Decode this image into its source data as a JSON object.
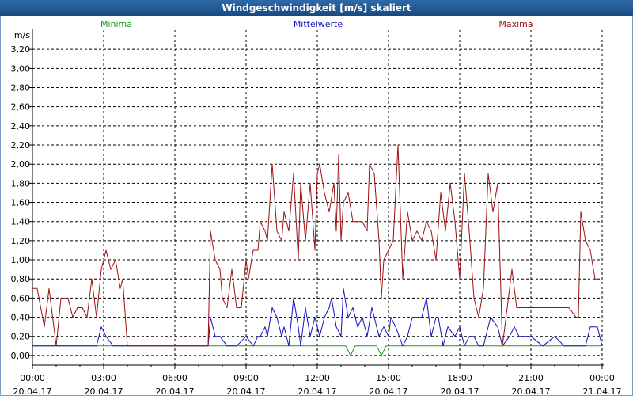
{
  "title": "Windgeschwindigkeit [m/s] skaliert",
  "colors": {
    "min": "#1a9b1a",
    "mean": "#1010c0",
    "max": "#9b1010",
    "axis": "#000000",
    "grid": "#000000"
  },
  "chart_data": {
    "type": "line",
    "ylabel": "m/s",
    "ylim": [
      -0.1,
      3.4
    ],
    "y_ticks": [
      "0,00",
      "0,20",
      "0,40",
      "0,60",
      "0,80",
      "1,00",
      "1,20",
      "1,40",
      "1,60",
      "1,80",
      "2,00",
      "2,20",
      "2,40",
      "2,60",
      "2,80",
      "3,00",
      "3,20"
    ],
    "x_ticks": [
      {
        "time": "00:00",
        "date": "20.04.17"
      },
      {
        "time": "03:00",
        "date": "20.04.17"
      },
      {
        "time": "06:00",
        "date": "20.04.17"
      },
      {
        "time": "09:00",
        "date": "20.04.17"
      },
      {
        "time": "12:00",
        "date": "20.04.17"
      },
      {
        "time": "15:00",
        "date": "20.04.17"
      },
      {
        "time": "18:00",
        "date": "20.04.17"
      },
      {
        "time": "21:00",
        "date": "20.04.17"
      },
      {
        "time": "00:00",
        "date": "21.04.17"
      }
    ],
    "grid": true,
    "series": [
      {
        "name": "Minima",
        "color_key": "min",
        "x": [
          0,
          13.2,
          13.4,
          13.6,
          14.5,
          14.7,
          14.9,
          24
        ],
        "y": [
          0.1,
          0.1,
          0.0,
          0.1,
          0.1,
          0.0,
          0.1,
          0.1
        ]
      },
      {
        "name": "Mittelwerte",
        "color_key": "mean",
        "x": [
          0,
          2.7,
          2.9,
          3.1,
          3.4,
          4.0,
          7.4,
          7.5,
          7.7,
          7.9,
          8.2,
          8.6,
          9.0,
          9.3,
          9.5,
          9.6,
          9.8,
          9.9,
          10.1,
          10.3,
          10.5,
          10.6,
          10.8,
          11.0,
          11.2,
          11.3,
          11.5,
          11.7,
          11.9,
          12.0,
          12.1,
          12.3,
          12.5,
          12.6,
          12.8,
          13.0,
          13.1,
          13.3,
          13.5,
          13.7,
          13.9,
          14.1,
          14.3,
          14.6,
          14.8,
          15.0,
          15.1,
          15.3,
          15.6,
          15.8,
          16.0,
          16.2,
          16.4,
          16.6,
          16.8,
          17.0,
          17.1,
          17.3,
          17.5,
          17.8,
          18.0,
          18.2,
          18.4,
          18.6,
          18.8,
          19.0,
          19.3,
          19.6,
          19.8,
          20.1,
          20.3,
          20.5,
          20.8,
          21.0,
          21.5,
          22.0,
          22.4,
          22.7,
          22.9,
          23.2,
          23.3,
          23.5,
          23.8,
          24
        ],
        "y": [
          0.1,
          0.1,
          0.3,
          0.2,
          0.1,
          0.1,
          0.1,
          0.4,
          0.2,
          0.2,
          0.1,
          0.1,
          0.2,
          0.1,
          0.2,
          0.2,
          0.3,
          0.2,
          0.5,
          0.4,
          0.2,
          0.3,
          0.1,
          0.6,
          0.3,
          0.1,
          0.5,
          0.2,
          0.4,
          0.3,
          0.2,
          0.4,
          0.5,
          0.6,
          0.3,
          0.2,
          0.7,
          0.4,
          0.5,
          0.3,
          0.4,
          0.2,
          0.5,
          0.2,
          0.3,
          0.2,
          0.4,
          0.3,
          0.1,
          0.2,
          0.4,
          0.4,
          0.4,
          0.6,
          0.2,
          0.4,
          0.4,
          0.1,
          0.3,
          0.2,
          0.3,
          0.1,
          0.2,
          0.2,
          0.1,
          0.1,
          0.4,
          0.3,
          0.1,
          0.2,
          0.3,
          0.2,
          0.2,
          0.2,
          0.1,
          0.2,
          0.1,
          0.1,
          0.1,
          0.1,
          0.1,
          0.3,
          0.3,
          0.1
        ]
      },
      {
        "name": "Maxima",
        "color_key": "max",
        "x": [
          0,
          0.2,
          0.5,
          0.7,
          1.0,
          1.2,
          1.5,
          1.7,
          1.9,
          2.1,
          2.3,
          2.5,
          2.7,
          2.9,
          3.1,
          3.3,
          3.5,
          3.7,
          3.8,
          4.0,
          7.4,
          7.5,
          7.7,
          7.9,
          8.0,
          8.2,
          8.4,
          8.6,
          8.8,
          9.0,
          9.1,
          9.3,
          9.5,
          9.6,
          9.8,
          9.9,
          10.1,
          10.3,
          10.5,
          10.6,
          10.8,
          11.0,
          11.2,
          11.3,
          11.5,
          11.7,
          11.9,
          12.0,
          12.1,
          12.3,
          12.5,
          12.7,
          12.8,
          12.9,
          13.0,
          13.1,
          13.3,
          13.5,
          13.7,
          13.9,
          14.1,
          14.2,
          14.4,
          14.6,
          14.7,
          14.8,
          15.0,
          15.2,
          15.4,
          15.6,
          15.8,
          16.0,
          16.2,
          16.4,
          16.6,
          16.8,
          17.0,
          17.2,
          17.4,
          17.6,
          17.8,
          18.0,
          18.2,
          18.4,
          18.6,
          18.8,
          19.0,
          19.2,
          19.4,
          19.6,
          19.8,
          20.0,
          20.2,
          20.4,
          20.6,
          20.8,
          21.0,
          21.5,
          22.0,
          22.3,
          22.6,
          22.9,
          23.0,
          23.1,
          23.3,
          23.5,
          23.7,
          23.8
        ],
        "y": [
          0.7,
          0.7,
          0.3,
          0.7,
          0.1,
          0.6,
          0.6,
          0.4,
          0.5,
          0.5,
          0.4,
          0.8,
          0.4,
          0.9,
          1.1,
          0.9,
          1.0,
          0.7,
          0.8,
          0.1,
          0.1,
          1.3,
          1.0,
          0.9,
          0.6,
          0.5,
          0.9,
          0.5,
          0.5,
          1.0,
          0.8,
          1.1,
          1.1,
          1.4,
          1.3,
          1.2,
          2.0,
          1.3,
          1.2,
          1.5,
          1.3,
          1.9,
          1.0,
          1.8,
          1.2,
          1.8,
          1.1,
          1.9,
          2.0,
          1.7,
          1.5,
          1.8,
          1.3,
          2.1,
          1.2,
          1.6,
          1.7,
          1.4,
          1.4,
          1.4,
          1.3,
          2.0,
          1.9,
          1.2,
          0.6,
          1.0,
          1.1,
          1.2,
          2.2,
          0.8,
          1.5,
          1.2,
          1.3,
          1.2,
          1.4,
          1.3,
          1.0,
          1.7,
          1.3,
          1.8,
          1.4,
          0.8,
          1.9,
          1.3,
          0.6,
          0.4,
          0.7,
          1.9,
          1.5,
          1.8,
          0.1,
          0.5,
          0.9,
          0.5,
          0.5,
          0.5,
          0.5,
          0.5,
          0.5,
          0.5,
          0.5,
          0.4,
          0.4,
          1.5,
          1.2,
          1.1,
          0.8,
          0.8
        ]
      }
    ]
  }
}
